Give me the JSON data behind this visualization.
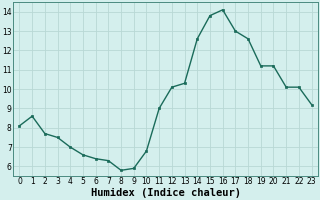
{
  "x": [
    0,
    1,
    2,
    3,
    4,
    5,
    6,
    7,
    8,
    9,
    10,
    11,
    12,
    13,
    14,
    15,
    16,
    17,
    18,
    19,
    20,
    21,
    22,
    23
  ],
  "y": [
    8.1,
    8.6,
    7.7,
    7.5,
    7.0,
    6.6,
    6.4,
    6.3,
    5.8,
    5.9,
    6.8,
    9.0,
    10.1,
    10.3,
    12.6,
    13.8,
    14.1,
    13.0,
    12.6,
    11.2,
    11.2,
    10.1,
    10.1,
    9.2
  ],
  "line_color": "#1a6b5a",
  "marker_color": "#1a6b5a",
  "bg_color": "#d4efed",
  "grid_color": "#b8d8d5",
  "xlabel": "Humidex (Indice chaleur)",
  "ylim": [
    5.5,
    14.5
  ],
  "xlim": [
    -0.5,
    23.5
  ],
  "yticks": [
    6,
    7,
    8,
    9,
    10,
    11,
    12,
    13,
    14
  ],
  "xticks": [
    0,
    1,
    2,
    3,
    4,
    5,
    6,
    7,
    8,
    9,
    10,
    11,
    12,
    13,
    14,
    15,
    16,
    17,
    18,
    19,
    20,
    21,
    22,
    23
  ],
  "tick_fontsize": 5.5,
  "xlabel_fontsize": 7.5,
  "figwidth": 3.2,
  "figheight": 2.0,
  "dpi": 100
}
